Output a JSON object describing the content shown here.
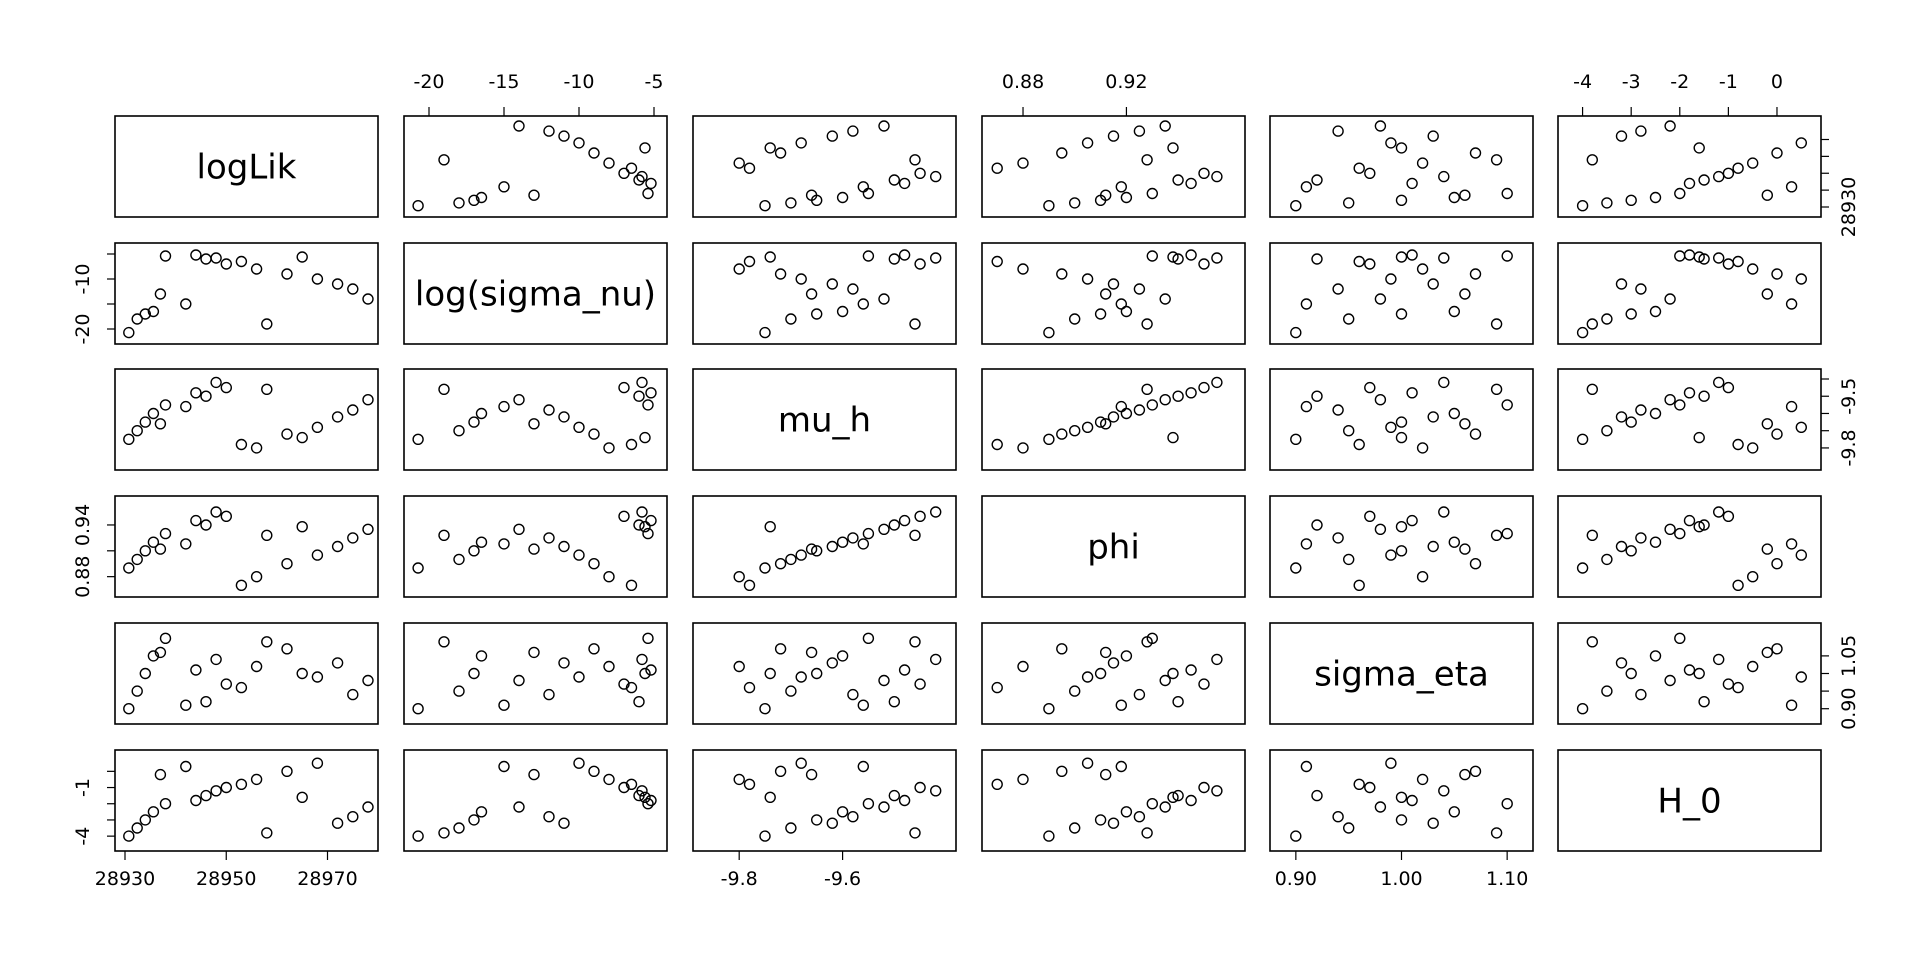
{
  "chart_data": {
    "type": "scatter",
    "plot_kind": "pairs scatterplot matrix",
    "variables": [
      {
        "name": "logLik",
        "range": [
          28930,
          28978
        ],
        "ticks": [
          28930,
          28950,
          28970
        ],
        "tick_labels": [
          "28930",
          "28950",
          "28970"
        ],
        "tick_side": "bottom",
        "values": [
          28930.76,
          28932.4,
          28934.0,
          28935.61,
          28938.0,
          28946.0,
          28950.0,
          28956.0,
          28962.0,
          28968.0,
          28972.0,
          28975.0,
          28978.0,
          28944.0,
          28948.0,
          28953.0,
          28937.0,
          28942.0,
          28958.0,
          28965.0
        ]
      },
      {
        "name": "log(sigma_nu)",
        "range": [
          -21.0,
          -4.8
        ],
        "ticks": [
          -20,
          -15,
          -10,
          -5
        ],
        "tick_labels": [
          "-20",
          "-15",
          "-10",
          "-5"
        ],
        "tick_side": "top",
        "values": [
          -20.73,
          -18.0,
          -17.0,
          -16.5,
          -5.4,
          -6.0,
          -7.0,
          -8.0,
          -9.0,
          -10.0,
          -11.0,
          -12.0,
          -14.0,
          -5.2,
          -5.8,
          -6.5,
          -13.0,
          -15.0,
          -19.0,
          -5.6
        ]
      },
      {
        "name": "mu_h",
        "range": [
          -9.87,
          -9.4
        ],
        "ticks": [
          -9.8,
          -9.6
        ],
        "tick_labels": [
          "-9.8",
          "-9.6"
        ],
        "tick_side": "bottom",
        "values": [
          -9.75,
          -9.7,
          -9.65,
          -9.6,
          -9.55,
          -9.5,
          -9.45,
          -9.8,
          -9.72,
          -9.68,
          -9.62,
          -9.58,
          -9.52,
          -9.48,
          -9.42,
          -9.78,
          -9.66,
          -9.56,
          -9.46,
          -9.74
        ]
      },
      {
        "name": "phi",
        "range": [
          0.868,
          0.962
        ],
        "ticks": [
          0.88,
          0.92
        ],
        "tick_labels": [
          "0.88",
          "0.92"
        ],
        "tick_side": "top",
        "values": [
          0.89,
          0.9,
          0.91,
          0.92,
          0.93,
          0.94,
          0.95,
          0.88,
          0.895,
          0.905,
          0.915,
          0.925,
          0.935,
          0.945,
          0.955,
          0.87,
          0.912,
          0.918,
          0.928,
          0.938
        ]
      },
      {
        "name": "sigma_eta",
        "range": [
          0.885,
          1.115
        ],
        "ticks": [
          0.9,
          1.0,
          1.1
        ],
        "tick_labels": [
          "0.90",
          "1.00",
          "1.10"
        ],
        "tick_side": "bottom",
        "values": [
          0.9,
          0.95,
          1.0,
          1.05,
          1.1,
          0.92,
          0.97,
          1.02,
          1.07,
          0.99,
          1.03,
          0.94,
          0.98,
          1.01,
          1.04,
          0.96,
          1.06,
          0.91,
          1.09,
          1.0
        ]
      },
      {
        "name": "H_0",
        "range": [
          -4.3,
          0.7
        ],
        "ticks": [
          -4,
          -3,
          -2,
          -1,
          0
        ],
        "tick_labels": [
          "-4",
          "-3",
          "-2",
          "-1",
          "0"
        ],
        "tick_side": "top",
        "values": [
          -4.0,
          -3.5,
          -3.0,
          -2.5,
          -2.0,
          -1.5,
          -1.0,
          -0.5,
          0.0,
          0.5,
          -3.2,
          -2.8,
          -2.2,
          -1.8,
          -1.2,
          -0.8,
          -0.2,
          0.3,
          -3.8,
          -1.6
        ]
      }
    ],
    "side_axes": [
      {
        "row": 0,
        "side": "right",
        "ticks": [
          28930
        ],
        "tick_labels": [
          "28930"
        ],
        "minor_tick_values": [
          28930,
          28940,
          28950,
          28960,
          28970
        ]
      },
      {
        "row": 1,
        "side": "left",
        "ticks": [
          -20,
          -10
        ],
        "tick_labels": [
          "-20",
          "-10"
        ],
        "minor_tick_values": [
          -20,
          -15,
          -10,
          -5
        ]
      },
      {
        "row": 2,
        "side": "right",
        "ticks": [
          -9.8,
          -9.5
        ],
        "tick_labels": [
          "-9.8",
          "-9.5"
        ],
        "minor_tick_values": [
          -9.8,
          -9.7,
          -9.6,
          -9.5,
          -9.4
        ]
      },
      {
        "row": 3,
        "side": "left",
        "ticks": [
          0.88,
          0.94
        ],
        "tick_labels": [
          "0.88",
          "0.94"
        ],
        "minor_tick_values": [
          0.88,
          0.91,
          0.94
        ]
      },
      {
        "row": 4,
        "side": "right",
        "ticks": [
          0.9,
          1.05
        ],
        "tick_labels": [
          "0.90",
          "1.05"
        ],
        "minor_tick_values": [
          0.9,
          0.95,
          1.0,
          1.05
        ]
      },
      {
        "row": 5,
        "side": "left",
        "ticks": [
          -4,
          -1
        ],
        "tick_labels": [
          "-4",
          "-1"
        ],
        "minor_tick_values": [
          -4,
          -3,
          -2,
          -1,
          0
        ]
      }
    ],
    "grid": false,
    "point_style": "open circle",
    "title": "",
    "xlabel": "",
    "ylabel": ""
  }
}
